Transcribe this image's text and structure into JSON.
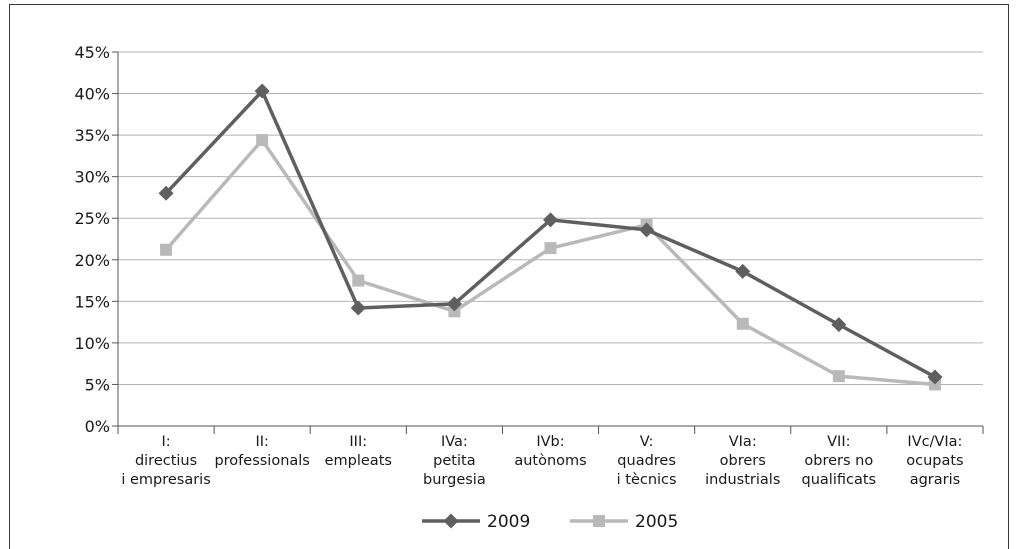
{
  "chart_data": {
    "type": "line",
    "categories": [
      [
        "I:",
        "directius",
        "i empresaris"
      ],
      [
        "II:",
        "professionals"
      ],
      [
        "III:",
        "empleats"
      ],
      [
        "IVa:",
        "petita",
        "burgesia"
      ],
      [
        "IVb:",
        "autònoms"
      ],
      [
        "V:",
        "quadres",
        "i tècnics"
      ],
      [
        "VIa:",
        "obrers",
        "industrials"
      ],
      [
        "VII:",
        "obrers no",
        "qualificats"
      ],
      [
        "IVc/VIa:",
        "ocupats",
        "agraris"
      ]
    ],
    "series": [
      {
        "name": "2009",
        "color": "#5f5f5f",
        "marker": "diamond",
        "values": [
          28.0,
          40.3,
          14.2,
          14.7,
          24.8,
          23.6,
          18.6,
          12.2,
          5.9
        ]
      },
      {
        "name": "2005",
        "color": "#b9b9b9",
        "marker": "square",
        "values": [
          21.2,
          34.4,
          17.5,
          13.8,
          21.4,
          24.2,
          12.3,
          6.0,
          5.0
        ]
      }
    ],
    "ylim": [
      0,
      45
    ],
    "yticks": [
      0,
      5,
      10,
      15,
      20,
      25,
      30,
      35,
      40,
      45
    ],
    "ytick_labels": [
      "0%",
      "5%",
      "10%",
      "15%",
      "20%",
      "25%",
      "30%",
      "35%",
      "40%",
      "45%"
    ],
    "grid": "horizontal",
    "legend": "bottom-center",
    "title": "",
    "xlabel": "",
    "ylabel": ""
  }
}
